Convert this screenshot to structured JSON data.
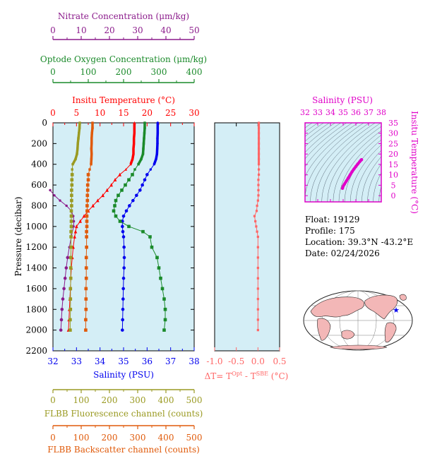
{
  "colors": {
    "nitrate": "#8b1a8b",
    "oxygen": "#1a8a2a",
    "temperature": "#ff0000",
    "salinity": "#0000ee",
    "fluorescence": "#9a9a22",
    "backscatter": "#e05a0a",
    "delta_t": "#ff6666",
    "ts": "#e000c8",
    "panel_bg": "#d4eef6"
  },
  "axes": {
    "nitrate": {
      "label": "Nitrate Concentration (μm/kg)",
      "ticks": [
        "0",
        "10",
        "20",
        "30",
        "40",
        "50"
      ]
    },
    "oxygen": {
      "label": "Optode Oxygen Concentration (μm/kg)",
      "ticks": [
        "0",
        "100",
        "200",
        "300",
        "400"
      ]
    },
    "temperature": {
      "label": "Insitu Temperature (°C)",
      "ticks": [
        "0",
        "5",
        "10",
        "15",
        "20",
        "25",
        "30"
      ]
    },
    "pressure": {
      "label": "Pressure (decibar)",
      "ticks": [
        "0",
        "200",
        "400",
        "600",
        "800",
        "1000",
        "1200",
        "1400",
        "1600",
        "1800",
        "2000",
        "2200"
      ]
    },
    "salinity": {
      "label": "Salinity (PSU)",
      "ticks": [
        "32",
        "33",
        "34",
        "35",
        "36",
        "37",
        "38"
      ]
    },
    "fluorescence": {
      "label": "FLBB Fluorescence channel (counts)",
      "ticks": [
        "0",
        "100",
        "200",
        "300",
        "400",
        "500"
      ]
    },
    "backscatter": {
      "label": "FLBB Backscatter channel (counts)",
      "ticks": [
        "0",
        "100",
        "200",
        "300",
        "400",
        "500"
      ]
    },
    "delta_t": {
      "label": "ΔT= T",
      "sup1": "Opt",
      "mid": " - T",
      "sup2": "SBE",
      "end": " (°C)",
      "ticks": [
        "-1.0",
        "-0.5",
        "0.0",
        "0.5"
      ]
    },
    "ts_salinity": {
      "label": "Salinity (PSU)",
      "ticks": [
        "32",
        "33",
        "34",
        "35",
        "36",
        "37",
        "38"
      ]
    },
    "ts_temperature": {
      "label": "Insitu Temperature (°C)",
      "ticks": [
        "0",
        "5",
        "10",
        "15",
        "20",
        "25",
        "30",
        "35"
      ]
    }
  },
  "info": {
    "float": "Float:  19129",
    "profile": "Profile:  175",
    "location": "Location:  39.3°N  -43.2°E",
    "date": "Date:  02/24/2026"
  },
  "chart_data": [
    {
      "type": "line",
      "title": "",
      "ylabel": "Pressure (decibar)",
      "ylim": [
        2200,
        0
      ],
      "pressure": [
        0,
        50,
        100,
        150,
        200,
        250,
        300,
        350,
        400,
        450,
        500,
        550,
        600,
        650,
        700,
        750,
        800,
        850,
        900,
        950,
        1000,
        1050,
        1100,
        1200,
        1300,
        1400,
        1500,
        1600,
        1700,
        1800,
        1900,
        2000
      ],
      "series": [
        {
          "name": "Insitu Temperature (°C)",
          "xlim": [
            0,
            30
          ],
          "values": [
            17.3,
            17.3,
            17.3,
            17.2,
            17.2,
            17.1,
            17.1,
            16.9,
            16.5,
            15.5,
            14.2,
            13.2,
            12.4,
            11.5,
            10.6,
            9.5,
            8.5,
            7.5,
            6.6,
            5.8,
            5.0,
            4.8,
            4.6,
            4.3,
            4.1,
            3.9,
            3.8,
            3.7,
            3.6,
            3.5,
            3.4,
            3.3
          ]
        },
        {
          "name": "Salinity (PSU)",
          "xlim": [
            32,
            38
          ],
          "values": [
            36.45,
            36.45,
            36.45,
            36.44,
            36.44,
            36.43,
            36.42,
            36.38,
            36.3,
            36.15,
            36.0,
            35.9,
            35.8,
            35.7,
            35.55,
            35.4,
            35.25,
            35.12,
            35.0,
            34.95,
            34.95,
            34.97,
            35.0,
            35.02,
            35.03,
            35.02,
            35.0,
            34.99,
            34.98,
            34.97,
            34.96,
            34.95
          ]
        },
        {
          "name": "Optode Oxygen Concentration (μm/kg)",
          "xlim": [
            0,
            400
          ],
          "values": [
            260,
            260,
            259,
            258,
            257,
            256,
            255,
            250,
            242,
            232,
            225,
            215,
            205,
            195,
            185,
            178,
            175,
            172,
            178,
            190,
            215,
            255,
            275,
            280,
            295,
            300,
            305,
            310,
            315,
            318,
            318,
            315
          ]
        },
        {
          "name": "Nitrate Concentration (μm/kg)",
          "xlim": [
            0,
            50
          ],
          "values": [
            null,
            null,
            null,
            null,
            null,
            null,
            null,
            null,
            null,
            null,
            null,
            null,
            null,
            -1.0,
            0.5,
            2.5,
            4.8,
            6.5,
            7.2,
            7.4,
            7.3,
            null,
            6.5,
            5.8,
            5.2,
            4.7,
            4.3,
            3.9,
            3.5,
            3.2,
            3.0,
            2.8
          ]
        },
        {
          "name": "FLBB Fluorescence channel (counts)",
          "xlim": [
            0,
            500
          ],
          "values": [
            95,
            94,
            92,
            90,
            88,
            87,
            85,
            80,
            70,
            68,
            68,
            67,
            67,
            66,
            66,
            66,
            66,
            65,
            65,
            65,
            65,
            64,
            64,
            64,
            63,
            63,
            63,
            62,
            62,
            62,
            61,
            61
          ]
        },
        {
          "name": "FLBB Backscatter channel (counts)",
          "xlim": [
            0,
            500
          ],
          "values": [
            140,
            140,
            138,
            137,
            137,
            136,
            137,
            136,
            135,
            130,
            125,
            125,
            123,
            123,
            122,
            122,
            121,
            121,
            120,
            120,
            120,
            119,
            119,
            119,
            118,
            118,
            118,
            117,
            117,
            117,
            116,
            116
          ]
        }
      ]
    },
    {
      "type": "line",
      "title": "",
      "xlabel": "ΔT= TOpt - TSBE (°C)",
      "xlim": [
        -1.0,
        0.5
      ],
      "ylim": [
        2200,
        0
      ],
      "pressure": [
        0,
        50,
        100,
        150,
        200,
        250,
        300,
        350,
        400,
        450,
        500,
        550,
        600,
        650,
        700,
        750,
        800,
        850,
        900,
        950,
        1000,
        1050,
        1100,
        1200,
        1300,
        1400,
        1500,
        1600,
        1700,
        1800,
        1900,
        2000
      ],
      "values": [
        0.02,
        0.02,
        0.02,
        0.02,
        0.02,
        0.02,
        0.02,
        0.02,
        0.02,
        0.02,
        0.02,
        0.01,
        0.01,
        0.01,
        0.01,
        0.0,
        -0.02,
        -0.03,
        -0.08,
        -0.06,
        -0.04,
        -0.02,
        0.0,
        0.0,
        0.0,
        0.0,
        0.0,
        0.0,
        0.0,
        0.0,
        0.0,
        0.0
      ]
    },
    {
      "type": "scatter",
      "title": "",
      "xlabel": "Salinity (PSU)",
      "ylabel": "Insitu Temperature (°C)",
      "xlim": [
        32,
        38
      ],
      "ylim": [
        -3,
        35
      ],
      "salinity": [
        34.95,
        35.0,
        35.1,
        35.25,
        35.4,
        35.55,
        35.7,
        35.85,
        36.0,
        36.15,
        36.3,
        36.38,
        36.43,
        36.45
      ],
      "temperature": [
        3.5,
        4.5,
        5.5,
        7.0,
        8.5,
        10.0,
        11.5,
        12.8,
        14.0,
        15.2,
        16.3,
        16.9,
        17.2,
        17.3
      ]
    }
  ]
}
